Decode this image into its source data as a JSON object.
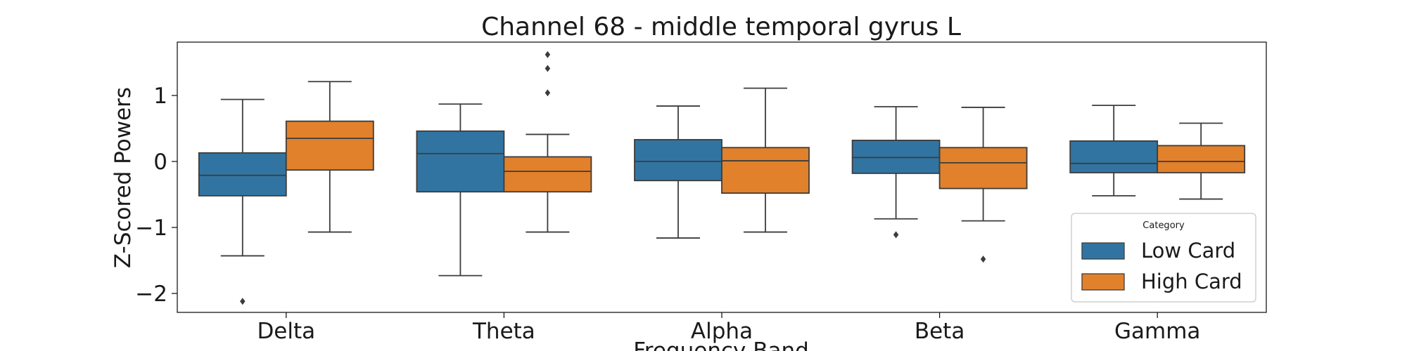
{
  "chart_data": {
    "type": "boxplot",
    "title": "Channel 68 - middle temporal gyrus L",
    "xlabel": "Frequency Band",
    "ylabel": "Z-Scored Powers",
    "ylim": [
      -2.3,
      1.8
    ],
    "yticks": [
      1,
      0,
      -1,
      -2
    ],
    "ytick_labels": [
      "1",
      "0",
      "−1",
      "−2"
    ],
    "categories": [
      "Delta",
      "Theta",
      "Alpha",
      "Beta",
      "Gamma"
    ],
    "legend": {
      "title": "Category",
      "position": "lower-right"
    },
    "series": [
      {
        "name": "Low Card",
        "color": "#3274a1",
        "boxes": [
          {
            "whisker_low": -1.43,
            "q1": -0.52,
            "median": -0.21,
            "q3": 0.13,
            "whisker_high": 0.94,
            "outliers": [
              -2.12
            ]
          },
          {
            "whisker_low": -1.73,
            "q1": -0.46,
            "median": 0.12,
            "q3": 0.46,
            "whisker_high": 0.87,
            "outliers": []
          },
          {
            "whisker_low": -1.16,
            "q1": -0.29,
            "median": 0.0,
            "q3": 0.33,
            "whisker_high": 0.84,
            "outliers": []
          },
          {
            "whisker_low": -0.87,
            "q1": -0.18,
            "median": 0.06,
            "q3": 0.32,
            "whisker_high": 0.83,
            "outliers": [
              -1.11
            ]
          },
          {
            "whisker_low": -0.52,
            "q1": -0.17,
            "median": -0.03,
            "q3": 0.31,
            "whisker_high": 0.85,
            "outliers": []
          }
        ]
      },
      {
        "name": "High Card",
        "color": "#e1812c",
        "boxes": [
          {
            "whisker_low": -1.07,
            "q1": -0.13,
            "median": 0.35,
            "q3": 0.61,
            "whisker_high": 1.21,
            "outliers": []
          },
          {
            "whisker_low": -1.07,
            "q1": -0.46,
            "median": -0.15,
            "q3": 0.07,
            "whisker_high": 0.41,
            "outliers": [
              1.04,
              1.41,
              1.62
            ]
          },
          {
            "whisker_low": -1.07,
            "q1": -0.48,
            "median": 0.01,
            "q3": 0.21,
            "whisker_high": 1.11,
            "outliers": []
          },
          {
            "whisker_low": -0.9,
            "q1": -0.41,
            "median": -0.02,
            "q3": 0.21,
            "whisker_high": 0.82,
            "outliers": [
              -1.48
            ]
          },
          {
            "whisker_low": -0.57,
            "q1": -0.17,
            "median": 0.0,
            "q3": 0.24,
            "whisker_high": 0.58,
            "outliers": []
          }
        ]
      }
    ]
  }
}
